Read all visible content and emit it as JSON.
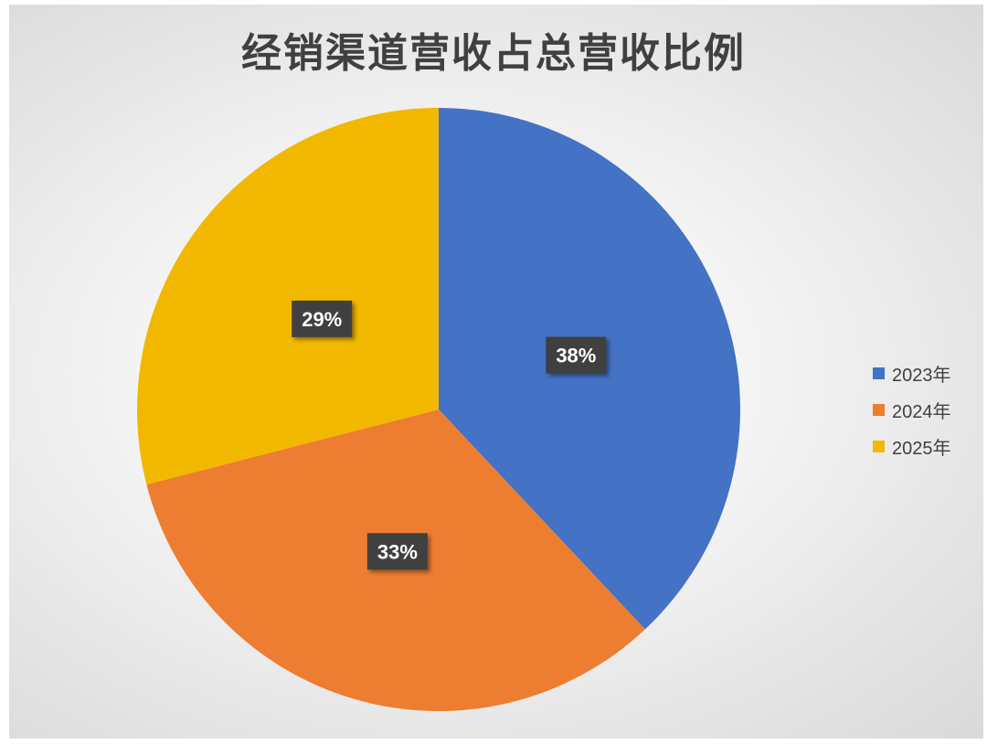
{
  "chart_data": {
    "type": "pie",
    "title": "经销渠道营收占总营收比例",
    "categories": [
      "2023年",
      "2024年",
      "2025年"
    ],
    "values": [
      38,
      33,
      29
    ],
    "data_labels": [
      "38%",
      "33%",
      "29%"
    ],
    "colors": [
      "#4472C4",
      "#ED7D31",
      "#F2B800"
    ],
    "legend_position": "right",
    "start_angle": "top, clockwise"
  }
}
